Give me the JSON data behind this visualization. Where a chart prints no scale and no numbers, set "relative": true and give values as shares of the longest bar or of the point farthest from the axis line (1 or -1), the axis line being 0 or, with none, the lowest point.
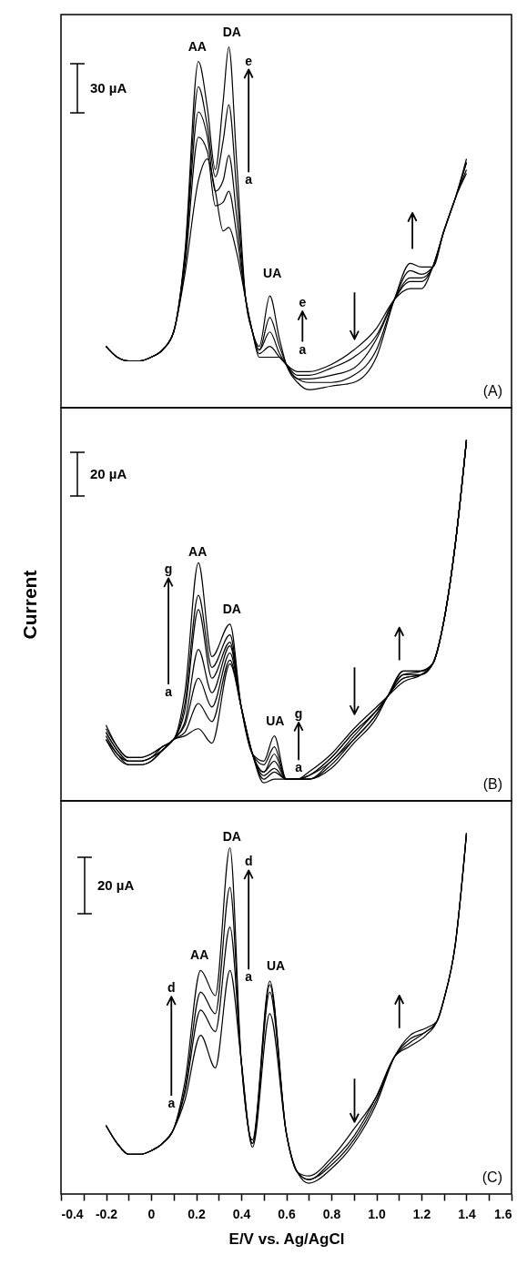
{
  "chart_data": [
    {
      "type": "line",
      "relative": true,
      "xlim": [
        -0.4,
        1.6
      ],
      "tick_labels": false,
      "x": [
        -0.2,
        -0.15,
        -0.1,
        -0.05,
        0,
        0.05,
        0.1,
        0.15,
        0.21,
        0.25,
        0.285,
        0.32,
        0.345,
        0.38,
        0.42,
        0.45,
        0.48,
        0.527,
        0.57,
        0.6,
        0.65,
        0.7,
        0.8,
        0.9,
        1.0,
        1.08,
        1.15,
        1.2,
        1.25,
        1.3,
        1.35,
        1.4
      ],
      "series": [
        {
          "color": "#000000",
          "values": [
            0.17,
            0.14,
            0.13,
            0.13,
            0.14,
            0.16,
            0.21,
            0.37,
            0.63,
            0.69,
            0.6,
            0.49,
            0.5,
            0.43,
            0.3,
            0.21,
            0.14,
            0.14,
            0.14,
            0.12,
            0.1,
            0.1,
            0.12,
            0.16,
            0.22,
            0.3,
            0.33,
            0.33,
            0.39,
            0.49,
            0.58,
            0.65
          ]
        },
        {
          "color": "#000000",
          "values": [
            0.17,
            0.14,
            0.13,
            0.13,
            0.14,
            0.16,
            0.21,
            0.39,
            0.75,
            0.71,
            0.56,
            0.57,
            0.6,
            0.48,
            0.3,
            0.21,
            0.15,
            0.17,
            0.14,
            0.12,
            0.09,
            0.09,
            0.11,
            0.14,
            0.2,
            0.3,
            0.35,
            0.35,
            0.39,
            0.49,
            0.58,
            0.66
          ]
        },
        {
          "color": "#000000",
          "values": [
            0.17,
            0.14,
            0.13,
            0.13,
            0.14,
            0.16,
            0.21,
            0.41,
            0.82,
            0.75,
            0.6,
            0.63,
            0.7,
            0.53,
            0.3,
            0.21,
            0.16,
            0.21,
            0.15,
            0.12,
            0.08,
            0.08,
            0.09,
            0.11,
            0.19,
            0.3,
            0.36,
            0.36,
            0.39,
            0.49,
            0.58,
            0.68
          ]
        },
        {
          "color": "#000000",
          "values": [
            0.17,
            0.14,
            0.13,
            0.13,
            0.14,
            0.16,
            0.21,
            0.42,
            0.89,
            0.78,
            0.64,
            0.74,
            0.84,
            0.6,
            0.3,
            0.21,
            0.16,
            0.25,
            0.17,
            0.12,
            0.08,
            0.07,
            0.07,
            0.09,
            0.16,
            0.3,
            0.38,
            0.37,
            0.39,
            0.49,
            0.58,
            0.68
          ]
        },
        {
          "color": "#000000",
          "values": [
            0.17,
            0.14,
            0.13,
            0.13,
            0.14,
            0.16,
            0.21,
            0.43,
            0.96,
            0.83,
            0.66,
            0.85,
            1.0,
            0.68,
            0.3,
            0.21,
            0.17,
            0.31,
            0.19,
            0.12,
            0.07,
            0.05,
            0.06,
            0.07,
            0.14,
            0.3,
            0.4,
            0.39,
            0.39,
            0.49,
            0.58,
            0.69
          ]
        }
      ],
      "annotations": [
        "30 µA",
        "(A)",
        "AA",
        "DA",
        "UA",
        "e",
        "a",
        "e",
        "a"
      ]
    },
    {
      "type": "line",
      "relative": true,
      "xlim": [
        -0.4,
        1.6
      ],
      "tick_labels": false,
      "ylabel": "Current",
      "x": [
        -0.2,
        -0.15,
        -0.1,
        -0.05,
        0,
        0.05,
        0.1,
        0.15,
        0.21,
        0.27,
        0.35,
        0.4,
        0.45,
        0.5,
        0.547,
        0.6,
        0.65,
        0.7,
        0.8,
        0.9,
        1.0,
        1.05,
        1.12,
        1.2,
        1.25,
        1.3,
        1.35,
        1.4
      ],
      "series": [
        {
          "color": "#000000",
          "values": [
            0.17,
            0.12,
            0.1,
            0.1,
            0.11,
            0.14,
            0.17,
            0.18,
            0.2,
            0.16,
            0.38,
            0.26,
            0.13,
            0.05,
            0.06,
            0.06,
            0.06,
            0.08,
            0.13,
            0.2,
            0.26,
            0.29,
            0.33,
            0.35,
            0.38,
            0.5,
            0.71,
            1.0
          ]
        },
        {
          "color": "#000000",
          "values": [
            0.17,
            0.13,
            0.1,
            0.1,
            0.11,
            0.14,
            0.17,
            0.19,
            0.27,
            0.22,
            0.39,
            0.26,
            0.13,
            0.06,
            0.08,
            0.06,
            0.06,
            0.07,
            0.12,
            0.19,
            0.25,
            0.29,
            0.34,
            0.35,
            0.38,
            0.5,
            0.71,
            1.0
          ]
        },
        {
          "color": "#000000",
          "values": [
            0.18,
            0.13,
            0.11,
            0.11,
            0.12,
            0.14,
            0.17,
            0.21,
            0.34,
            0.26,
            0.41,
            0.26,
            0.13,
            0.07,
            0.09,
            0.06,
            0.06,
            0.07,
            0.12,
            0.19,
            0.25,
            0.29,
            0.34,
            0.35,
            0.38,
            0.5,
            0.71,
            1.0
          ]
        },
        {
          "color": "#000000",
          "values": [
            0.19,
            0.14,
            0.11,
            0.11,
            0.12,
            0.14,
            0.17,
            0.22,
            0.42,
            0.3,
            0.43,
            0.26,
            0.13,
            0.08,
            0.11,
            0.06,
            0.06,
            0.07,
            0.11,
            0.18,
            0.25,
            0.29,
            0.35,
            0.35,
            0.38,
            0.5,
            0.71,
            1.0
          ]
        },
        {
          "color": "#000000",
          "values": [
            0.19,
            0.14,
            0.11,
            0.11,
            0.12,
            0.15,
            0.17,
            0.25,
            0.53,
            0.34,
            0.44,
            0.26,
            0.13,
            0.08,
            0.13,
            0.06,
            0.06,
            0.06,
            0.11,
            0.17,
            0.24,
            0.29,
            0.35,
            0.36,
            0.38,
            0.5,
            0.71,
            1.0
          ]
        },
        {
          "color": "#000000",
          "values": [
            0.2,
            0.15,
            0.12,
            0.12,
            0.13,
            0.15,
            0.17,
            0.27,
            0.57,
            0.37,
            0.46,
            0.26,
            0.13,
            0.1,
            0.15,
            0.06,
            0.06,
            0.06,
            0.1,
            0.17,
            0.24,
            0.29,
            0.36,
            0.36,
            0.38,
            0.5,
            0.71,
            1.0
          ]
        },
        {
          "color": "#000000",
          "values": [
            0.21,
            0.15,
            0.12,
            0.12,
            0.13,
            0.15,
            0.17,
            0.3,
            0.66,
            0.4,
            0.49,
            0.26,
            0.13,
            0.11,
            0.18,
            0.06,
            0.06,
            0.06,
            0.09,
            0.16,
            0.23,
            0.29,
            0.36,
            0.36,
            0.38,
            0.5,
            0.71,
            1.0
          ]
        }
      ],
      "annotations": [
        "20 µA",
        "(B)",
        "AA",
        "DA",
        "UA",
        "g",
        "a",
        "g",
        "a"
      ]
    },
    {
      "type": "line",
      "relative": true,
      "xlim": [
        -0.4,
        1.6
      ],
      "tick_labels": "x",
      "xlabel": "E/V vs. Ag/AgCl",
      "xticks": [
        -0.4,
        {
          "value": -0.3,
          "label": null
        },
        -0.2,
        {
          "value": -0.1,
          "label": null
        },
        0,
        {
          "value": 0.1,
          "label": null
        },
        0.2,
        {
          "value": 0.3,
          "label": null
        },
        0.4,
        {
          "value": 0.5,
          "label": null
        },
        0.6,
        {
          "value": 0.7,
          "label": null
        },
        0.8,
        {
          "value": 0.9,
          "label": null
        },
        {
          "value": 1,
          "label": "1.0"
        },
        {
          "value": 1.1,
          "label": null
        },
        1.2,
        {
          "value": 1.3,
          "label": null
        },
        1.4,
        {
          "value": 1.5,
          "label": null
        },
        1.6
      ],
      "x": [
        -0.2,
        -0.15,
        -0.1,
        -0.05,
        0,
        0.05,
        0.1,
        0.15,
        0.22,
        0.285,
        0.35,
        0.4,
        0.45,
        0.527,
        0.6,
        0.65,
        0.7,
        0.8,
        0.9,
        1.0,
        1.08,
        1.15,
        1.22,
        1.27,
        1.3,
        1.35,
        1.4
      ],
      "series": [
        {
          "color": "#000000",
          "values": [
            0.19,
            0.14,
            0.11,
            0.11,
            0.12,
            0.14,
            0.18,
            0.26,
            0.44,
            0.35,
            0.62,
            0.37,
            0.13,
            0.5,
            0.17,
            0.06,
            0.05,
            0.1,
            0.18,
            0.27,
            0.38,
            0.41,
            0.44,
            0.48,
            0.54,
            0.69,
            1.0
          ]
        },
        {
          "color": "#000000",
          "values": [
            0.19,
            0.14,
            0.11,
            0.11,
            0.12,
            0.14,
            0.18,
            0.28,
            0.51,
            0.45,
            0.74,
            0.37,
            0.14,
            0.56,
            0.17,
            0.06,
            0.04,
            0.09,
            0.16,
            0.27,
            0.38,
            0.42,
            0.45,
            0.48,
            0.54,
            0.69,
            1.0
          ]
        },
        {
          "color": "#000000",
          "values": [
            0.19,
            0.14,
            0.11,
            0.11,
            0.12,
            0.14,
            0.18,
            0.29,
            0.56,
            0.5,
            0.85,
            0.37,
            0.14,
            0.58,
            0.17,
            0.06,
            0.04,
            0.08,
            0.15,
            0.26,
            0.38,
            0.43,
            0.45,
            0.48,
            0.54,
            0.69,
            1.0
          ]
        },
        {
          "color": "#000000",
          "values": [
            0.19,
            0.14,
            0.11,
            0.11,
            0.12,
            0.14,
            0.18,
            0.31,
            0.62,
            0.55,
            0.96,
            0.37,
            0.15,
            0.59,
            0.17,
            0.06,
            0.03,
            0.07,
            0.14,
            0.25,
            0.38,
            0.44,
            0.46,
            0.48,
            0.54,
            0.69,
            1.0
          ]
        }
      ],
      "annotations": [
        "20 µA",
        "(C)",
        "AA",
        "DA",
        "UA",
        "d",
        "a",
        "d",
        "a"
      ]
    }
  ]
}
